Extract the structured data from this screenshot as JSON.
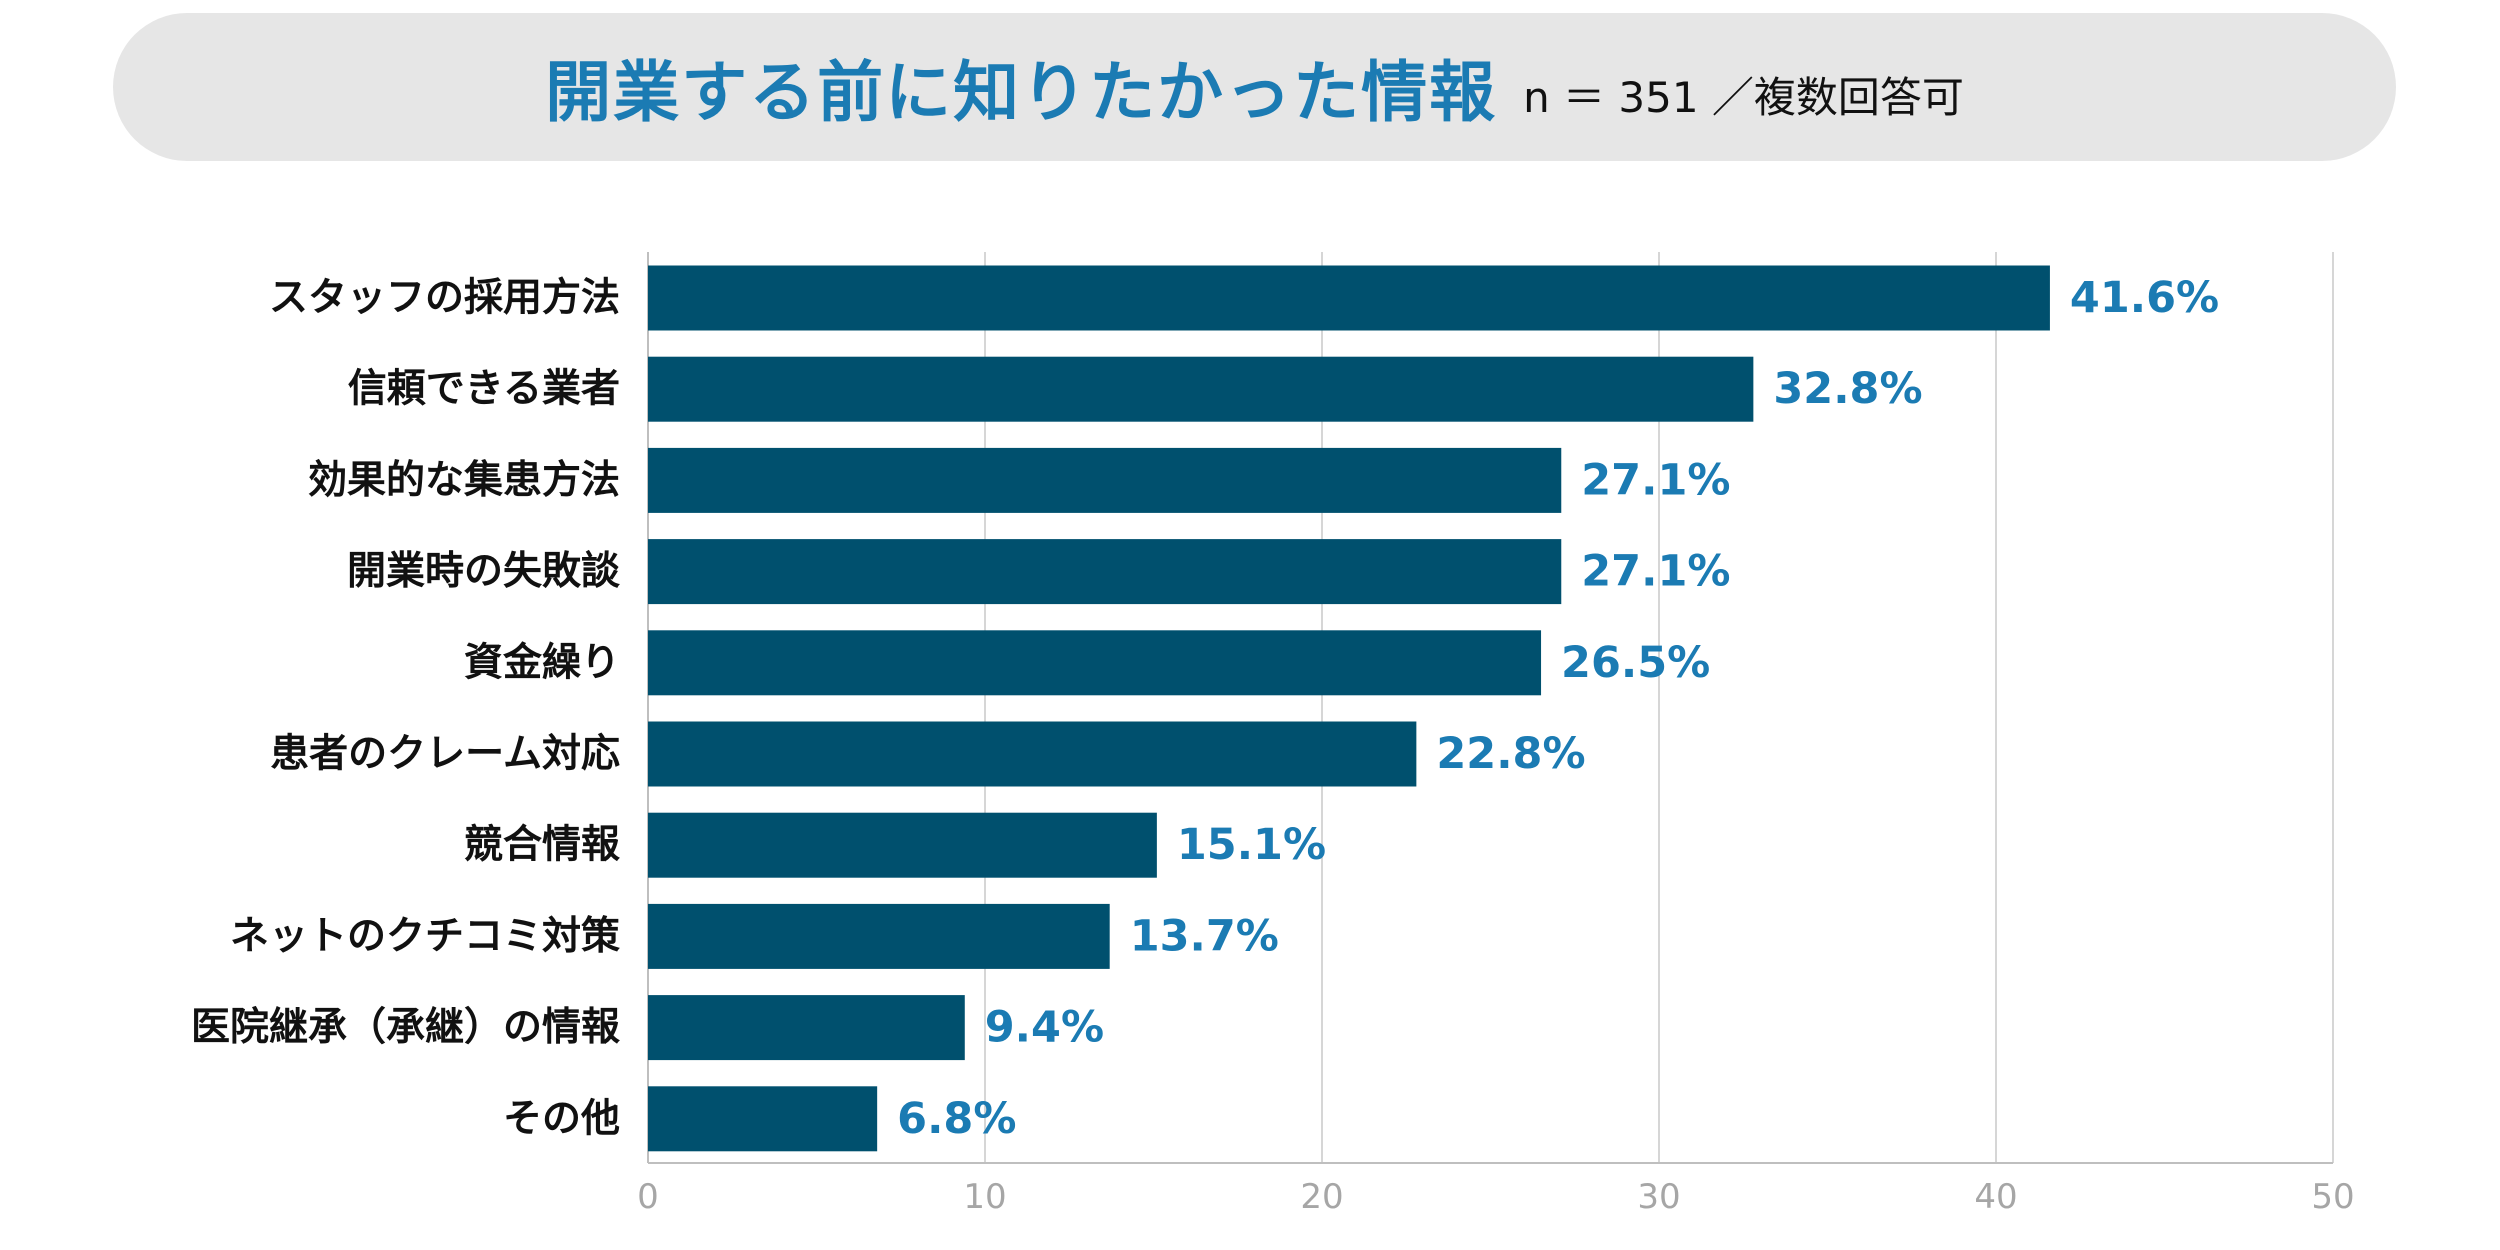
{
  "chart_data": {
    "type": "bar",
    "orientation": "horizontal",
    "title": "開業する前に知りたかった情報",
    "subtitle": "n ＝ 351 ／複数回答可",
    "categories": [
      "スタッフの採用方法",
      "信頼できる業者",
      "効果的な集患方法",
      "開業時の失敗談",
      "資金繰り",
      "患者のクレーム対応",
      "競合情報",
      "ネットのクチコミ対策",
      "医院継承（承継）の情報",
      "その他"
    ],
    "values": [
      41.6,
      32.8,
      27.1,
      27.1,
      26.5,
      22.8,
      15.1,
      13.7,
      9.4,
      6.8
    ],
    "value_labels": [
      "41.6%",
      "32.8%",
      "27.1%",
      "27.1%",
      "26.5%",
      "22.8%",
      "15.1%",
      "13.7%",
      "9.4%",
      "6.8%"
    ],
    "xlim": [
      0,
      50
    ],
    "xticks": [
      0,
      10,
      20,
      30,
      40,
      50
    ],
    "grid": true,
    "bar_color": "#00506e",
    "label_color": "#1b7bb3"
  }
}
